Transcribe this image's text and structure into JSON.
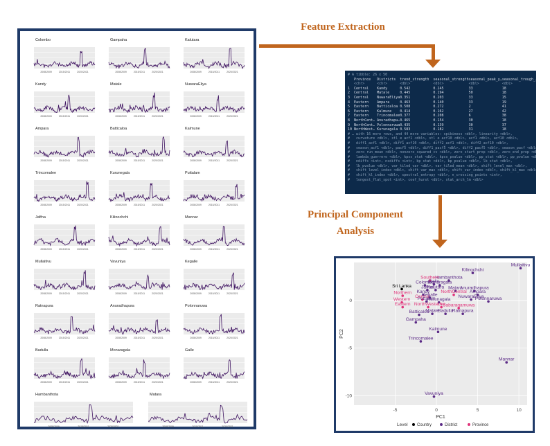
{
  "labels": {
    "feature_extraction": "Feature Extraction",
    "pca_line1": "Principal Component",
    "pca_line2": "Analysis"
  },
  "mini_charts": [
    "Colombo",
    "Gampaha",
    "Kalutara",
    "Kandy",
    "Matale",
    "NuwaraEliya",
    "Ampara",
    "Batticaloa",
    "Kalmune",
    "Trincomalee",
    "Kurunegala",
    "Puttalam",
    "Jaffna",
    "Kilinochchi",
    "Mannar",
    "Mullaitivu",
    "Vavuniya",
    "Kegalle",
    "Ratnapura",
    "Anuradhapura",
    "Polonnaruwa",
    "Badulla",
    "Monaragala",
    "Galle",
    "Hambanthota",
    "Matara"
  ],
  "mini_axis_years": [
    "2008/2009",
    "2015/2011",
    "2020/2021"
  ],
  "console": {
    "header": "# A tibble: 26 x 50",
    "columns": [
      "Province",
      "Districts",
      "trend_strength",
      "seasonal_strength_…",
      "seasonal_peak_y…",
      "seasonal_trough_…"
    ],
    "types": [
      "<chr>",
      "<chr>",
      "<dbl>",
      "<dbl>",
      "<dbl>",
      "<dbl>"
    ],
    "rows": [
      [
        "1",
        "Central",
        "Kandy",
        "0.542",
        "0.245",
        "33",
        "18"
      ],
      [
        "2",
        "Central",
        "Matale",
        "0.445",
        "0.194",
        "50",
        "18"
      ],
      [
        "3",
        "Central",
        "NuwaraEliya",
        "0.351",
        "0.203",
        "33",
        "15"
      ],
      [
        "4",
        "Eastern",
        "Ampara",
        "0.463",
        "0.140",
        "33",
        "19"
      ],
      [
        "5",
        "Eastern",
        "Batticaloa",
        "0.508",
        "0.272",
        "2",
        "41"
      ],
      [
        "6",
        "Eastern",
        "Kalmune",
        "0.414",
        "0.162",
        "27",
        "42"
      ],
      [
        "7",
        "Eastern",
        "Trincomalee",
        "0.377",
        "0.208",
        "6",
        "38"
      ],
      [
        "8",
        "NorthCent…",
        "Anuradhapu…",
        "0.465",
        "0.154",
        "30",
        "18"
      ],
      [
        "9",
        "NorthCent…",
        "Polonnaruwa",
        "0.435",
        "0.139",
        "30",
        "37"
      ],
      [
        "10",
        "NorthWest…",
        "Kurunagala",
        "0.583",
        "0.182",
        "31",
        "18"
      ]
    ],
    "footer": [
      "# … with 16 more rows, and 44 more variables: spikiness <dbl>, linearity <dbl>,",
      "#   curvature <dbl>, stl_e_acf1 <dbl>, stl_e_acf10 <dbl>, acf1 <dbl>, acf10 <dbl>,",
      "#   diff1_acf1 <dbl>, diff1_acf10 <dbl>, diff2_acf1 <dbl>, diff2_acf10 <dbl>,",
      "#   season_acf1 <dbl>, pacf5 <dbl>, diff1_pacf5 <dbl>, diff2_pacf5 <dbl>, season_pacf <dbl>,",
      "#   zero_run_mean <dbl>, nonzero_squared_cv <dbl>, zero_start_prop <dbl>, zero_end_prop <dbl>,",
      "#   lambda_guerrero <dbl>, kpss_stat <dbl>, kpss_pvalue <dbl>, pp_stat <dbl>, pp_pvalue <dbl>,",
      "#   ndiffs <int>, nsdiffs <int>, bp_stat <dbl>, bp_pvalue <dbl>, lb_stat <dbl>,",
      "#   lb_pvalue <dbl>, var_tiled_var <dbl>, var_tiled_mean <dbl>, shift_level_max <dbl>,",
      "#   shift_level_index <dbl>, shift_var_max <dbl>, shift_var_index <dbl>, shift_kl_max <dbl>,",
      "#   shift_kl_index <dbl>, spectral_entropy <dbl>, n_crossing_points <int>,",
      "#   longest_flat_spot <int>, coef_hurst <dbl>, stat_arch_lm <dbl>"
    ]
  },
  "chart_data": {
    "type": "scatter",
    "xlabel": "PC1",
    "ylabel": "PC2",
    "xlim": [
      -10,
      11
    ],
    "ylim": [
      -11,
      4
    ],
    "xticks": [
      -5,
      0,
      5,
      10
    ],
    "yticks": [
      0,
      -5,
      -10
    ],
    "grid": true,
    "legend": {
      "title": "Level",
      "placement": "bottom",
      "entries": [
        {
          "label": "Country",
          "color": "#000000"
        },
        {
          "label": "District",
          "color": "#5b2a86"
        },
        {
          "label": "Province",
          "color": "#e0337a"
        }
      ]
    },
    "points": [
      {
        "label": "Mullaitivu",
        "x": 10.2,
        "y": 3.4,
        "level": "District"
      },
      {
        "label": "Kilinochchi",
        "x": 4.4,
        "y": 2.9,
        "level": "District"
      },
      {
        "label": "Hambanthota",
        "x": 1.5,
        "y": 2.1,
        "level": "District"
      },
      {
        "label": "Southern",
        "x": -0.8,
        "y": 2.1,
        "level": "Province"
      },
      {
        "label": "Galle",
        "x": -0.3,
        "y": 1.7,
        "level": "District"
      },
      {
        "label": "Monaragala",
        "x": 0.4,
        "y": 1.6,
        "level": "District"
      },
      {
        "label": "Colombo",
        "x": -1.4,
        "y": 1.6,
        "level": "District"
      },
      {
        "label": "Sri Lanka",
        "x": -4.2,
        "y": 1.2,
        "level": "Country"
      },
      {
        "label": "Jaffna",
        "x": -1.1,
        "y": 1.1,
        "level": "District"
      },
      {
        "label": "Kalutara",
        "x": -0.1,
        "y": 1.1,
        "level": "District"
      },
      {
        "label": "Matara",
        "x": 2.3,
        "y": 1.0,
        "level": "District"
      },
      {
        "label": "Anuradhapura",
        "x": 4.6,
        "y": 1.0,
        "level": "District"
      },
      {
        "label": "Northern",
        "x": -4.1,
        "y": 0.5,
        "level": "Province"
      },
      {
        "label": "Kandy",
        "x": -1.6,
        "y": 0.6,
        "level": "District"
      },
      {
        "label": "NorthCentral",
        "x": 2.1,
        "y": 0.6,
        "level": "Province"
      },
      {
        "label": "Ampara",
        "x": 5.0,
        "y": 0.6,
        "level": "District"
      },
      {
        "label": "Central",
        "x": -1.7,
        "y": 0.1,
        "level": "Province"
      },
      {
        "label": "Kegalle",
        "x": -0.8,
        "y": 0.3,
        "level": "District"
      },
      {
        "label": "NuwaraEliya",
        "x": 4.2,
        "y": 0.1,
        "level": "District"
      },
      {
        "label": "Polonnaruwa",
        "x": 6.3,
        "y": -0.1,
        "level": "District"
      },
      {
        "label": "Western",
        "x": -4.2,
        "y": -0.2,
        "level": "Province"
      },
      {
        "label": "Puttalam",
        "x": -1.2,
        "y": -0.1,
        "level": "District"
      },
      {
        "label": "Kurunagala",
        "x": 0.3,
        "y": -0.2,
        "level": "District"
      },
      {
        "label": "Eastern",
        "x": -4.1,
        "y": -0.7,
        "level": "Province"
      },
      {
        "label": "NorthWestern",
        "x": -1.0,
        "y": -0.7,
        "level": "Province"
      },
      {
        "label": "Uva",
        "x": 0.6,
        "y": -0.7,
        "level": "Province"
      },
      {
        "label": "Sabaragamuwa",
        "x": 2.7,
        "y": -0.8,
        "level": "Province"
      },
      {
        "label": "Batticaloa",
        "x": -2.1,
        "y": -1.5,
        "level": "District"
      },
      {
        "label": "Matale",
        "x": -0.5,
        "y": -1.4,
        "level": "District"
      },
      {
        "label": "Badulla",
        "x": 1.1,
        "y": -1.4,
        "level": "District"
      },
      {
        "label": "Ratnapura",
        "x": 3.2,
        "y": -1.4,
        "level": "District"
      },
      {
        "label": "Gampaha",
        "x": -2.5,
        "y": -2.3,
        "level": "District"
      },
      {
        "label": "Kalmune",
        "x": 0.2,
        "y": -3.3,
        "level": "District"
      },
      {
        "label": "Trincomalee",
        "x": -1.9,
        "y": -4.3,
        "level": "District"
      },
      {
        "label": "Mannar",
        "x": 8.5,
        "y": -6.5,
        "level": "District"
      },
      {
        "label": "Vavuniya",
        "x": -0.3,
        "y": -10.1,
        "level": "District"
      }
    ]
  }
}
